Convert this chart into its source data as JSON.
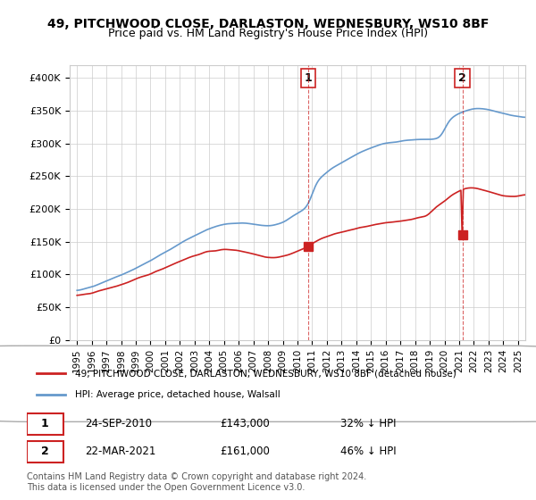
{
  "title1": "49, PITCHWOOD CLOSE, DARLASTON, WEDNESBURY, WS10 8BF",
  "title2": "Price paid vs. HM Land Registry's House Price Index (HPI)",
  "ylabel_ticks": [
    "£0",
    "£50K",
    "£100K",
    "£150K",
    "£200K",
    "£250K",
    "£300K",
    "£350K",
    "£400K"
  ],
  "ytick_values": [
    0,
    50000,
    100000,
    150000,
    200000,
    250000,
    300000,
    350000,
    400000
  ],
  "ylim": [
    0,
    420000
  ],
  "hpi_color": "#6699cc",
  "price_color": "#cc2222",
  "marker1_date": 2010.73,
  "marker1_price": 143000,
  "marker1_label": "1",
  "marker2_date": 2021.22,
  "marker2_price": 161000,
  "marker2_label": "2",
  "legend_line1": "49, PITCHWOOD CLOSE, DARLASTON, WEDNESBURY, WS10 8BF (detached house)",
  "legend_line2": "HPI: Average price, detached house, Walsall",
  "annotation1_date": "24-SEP-2010",
  "annotation1_price": "£143,000",
  "annotation1_hpi": "32% ↓ HPI",
  "annotation2_date": "22-MAR-2021",
  "annotation2_price": "£161,000",
  "annotation2_hpi": "46% ↓ HPI",
  "footer": "Contains HM Land Registry data © Crown copyright and database right 2024.\nThis data is licensed under the Open Government Licence v3.0.",
  "xlim_start": 1994.5,
  "xlim_end": 2025.5
}
